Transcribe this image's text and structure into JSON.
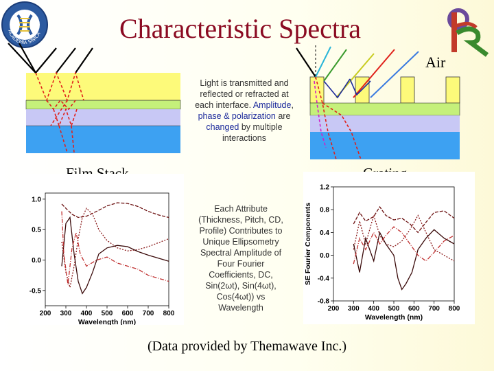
{
  "title": "Characteristic Spectra",
  "logo_left": {
    "text": "ACADEMIA SINICA",
    "chinese": "中央研究院"
  },
  "labels": {
    "air": "Air",
    "film_stack": "Film Stack",
    "grating": "Grating"
  },
  "interaction_note": {
    "part1": "Light is transmitted and reflected or refracted at each interface. ",
    "amplitude": "Amplitude",
    "comma": ",",
    "phase": "phase & polarization",
    "are": "are",
    "changed": "changed",
    "part2": "by multiple interactions"
  },
  "attribute_note": "Each Attribute (Thickness, Pitch, CD, Profile) Contributes to Unique Ellipsometry Spectral Amplitude of Four Fourier Coefficients, DC, Sin(2ωt), Sin(4ωt), Cos(4ωt)) vs Wavelength",
  "credit": "(Data provided by Themawave Inc.)",
  "colors": {
    "title": "#8b0b22",
    "film_yellow": "#fdfa7a",
    "film_green": "#c5f07a",
    "film_lavender": "#c8c8f5",
    "film_blue": "#3da1f2",
    "accent_blue": "#1e2c9c"
  },
  "chart_data": [
    {
      "type": "line",
      "title": "",
      "xlabel": "Wavelength (nm)",
      "ylabel": "",
      "xticks": [
        "200",
        "300",
        "400",
        "500",
        "600",
        "700",
        "800"
      ],
      "yticks": [
        "1.0",
        "0.5",
        "0.0",
        "-0.5"
      ],
      "xlim": [
        200,
        800
      ],
      "ylim": [
        -0.75,
        1.1
      ],
      "series": [
        {
          "x": [
            280,
            300,
            330,
            360,
            400,
            450,
            500,
            550,
            600,
            650,
            700,
            750,
            800
          ],
          "y": [
            0.92,
            0.85,
            0.75,
            0.7,
            0.72,
            0.8,
            0.89,
            0.94,
            0.93,
            0.88,
            0.8,
            0.74,
            0.7
          ]
        },
        {
          "x": [
            280,
            300,
            320,
            340,
            360,
            380,
            400,
            430,
            460,
            500,
            550,
            600,
            650,
            700,
            800
          ],
          "y": [
            0.3,
            -0.2,
            -0.45,
            -0.1,
            0.35,
            0.7,
            0.85,
            0.75,
            0.5,
            0.32,
            0.2,
            0.15,
            0.17,
            0.22,
            0.35
          ]
        },
        {
          "x": [
            280,
            300,
            320,
            340,
            360,
            380,
            400,
            430,
            460,
            500,
            550,
            600,
            650,
            700,
            800
          ],
          "y": [
            -0.1,
            0.6,
            0.7,
            0.1,
            -0.35,
            -0.55,
            -0.45,
            -0.2,
            0.1,
            0.2,
            0.24,
            0.22,
            0.14,
            0.08,
            -0.02
          ]
        },
        {
          "x": [
            280,
            290,
            310,
            330,
            350,
            370,
            400,
            450,
            500,
            550,
            600,
            650,
            700,
            750,
            800
          ],
          "y": [
            0.8,
            0.1,
            -0.4,
            0.2,
            0.45,
            0.1,
            -0.1,
            0.0,
            0.05,
            -0.05,
            -0.1,
            -0.15,
            -0.25,
            -0.3,
            -0.35
          ]
        }
      ]
    },
    {
      "type": "line",
      "title": "",
      "xlabel": "Wavelength (nm)",
      "ylabel": "SE Fourier Components",
      "xticks": [
        "200",
        "300",
        "400",
        "500",
        "600",
        "700",
        "800"
      ],
      "yticks": [
        "1.2",
        "0.8",
        "0.4",
        "0.0",
        "-0.4",
        "-0.8"
      ],
      "xlim": [
        200,
        800
      ],
      "ylim": [
        -0.8,
        1.2
      ],
      "series": [
        {
          "x": [
            300,
            330,
            360,
            400,
            430,
            460,
            500,
            540,
            580,
            620,
            660,
            700,
            750,
            800
          ],
          "y": [
            0.55,
            0.75,
            0.6,
            0.68,
            0.85,
            0.7,
            0.62,
            0.65,
            0.55,
            0.4,
            0.58,
            0.75,
            0.78,
            0.65
          ]
        },
        {
          "x": [
            300,
            330,
            360,
            400,
            430,
            460,
            500,
            540,
            580,
            620,
            660,
            700,
            750,
            800
          ],
          "y": [
            0.1,
            0.6,
            0.2,
            0.7,
            0.35,
            0.2,
            0.15,
            0.25,
            0.45,
            0.7,
            0.4,
            0.1,
            0.0,
            -0.1
          ]
        },
        {
          "x": [
            300,
            330,
            360,
            400,
            430,
            460,
            500,
            520,
            540,
            560,
            590,
            620,
            660,
            700,
            750,
            800
          ],
          "y": [
            0.2,
            -0.3,
            0.3,
            -0.1,
            0.4,
            0.2,
            0.0,
            -0.4,
            -0.6,
            -0.5,
            -0.3,
            0.1,
            0.3,
            0.45,
            0.3,
            0.2
          ]
        },
        {
          "x": [
            300,
            330,
            360,
            400,
            430,
            460,
            500,
            540,
            580,
            620,
            660,
            700,
            750,
            800
          ],
          "y": [
            -0.15,
            0.3,
            0.1,
            0.4,
            0.2,
            0.35,
            0.5,
            0.4,
            0.2,
            0.0,
            -0.1,
            0.05,
            0.25,
            0.35
          ]
        }
      ]
    }
  ]
}
